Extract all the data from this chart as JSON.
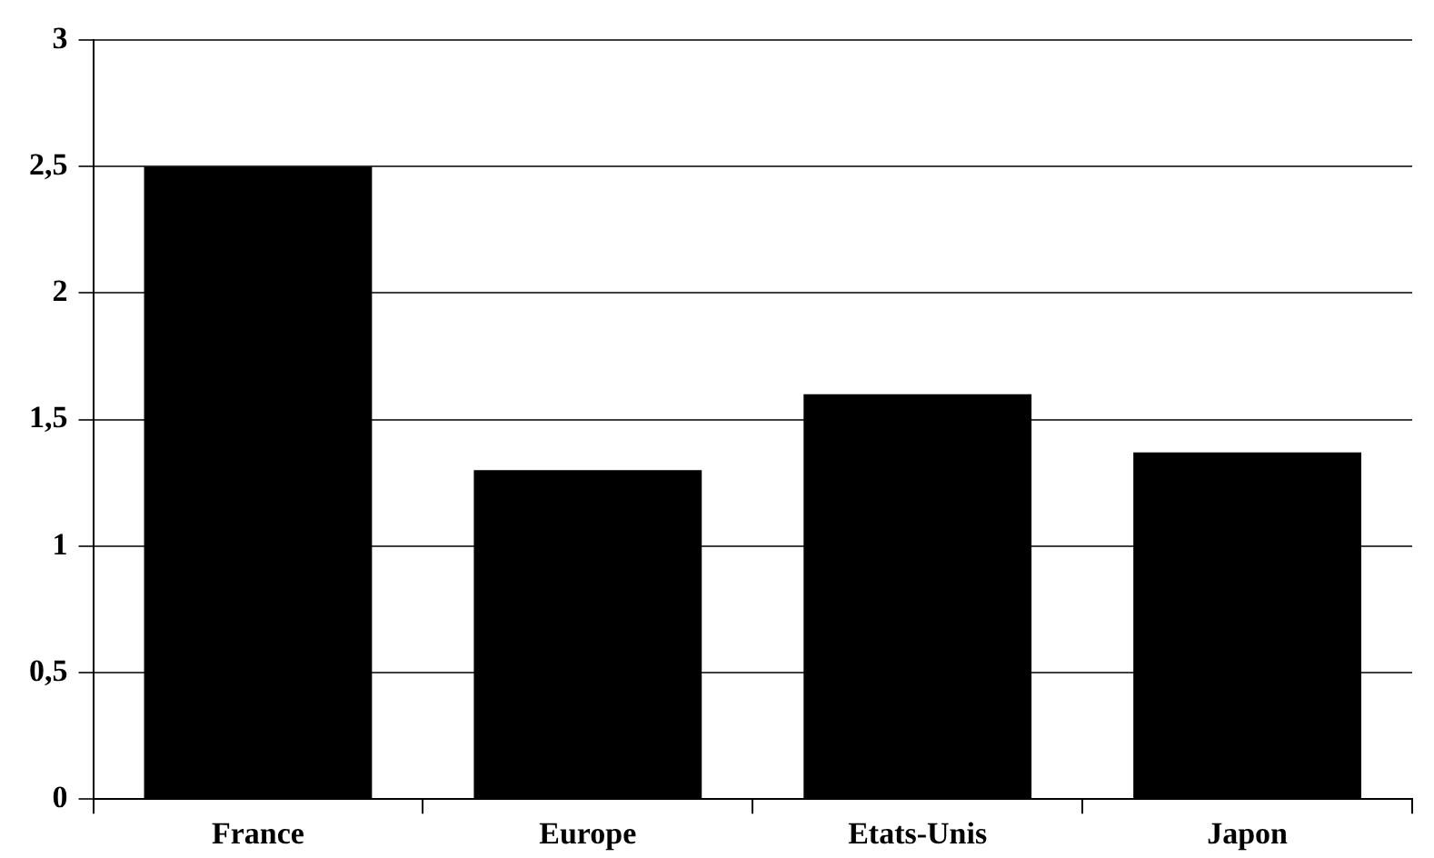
{
  "chart_data": {
    "type": "bar",
    "categories": [
      "France",
      "Europe",
      "Etats-Unis",
      "Japon"
    ],
    "values": [
      2.5,
      1.3,
      1.6,
      1.37
    ],
    "color": "#000000",
    "ylim": [
      0,
      3
    ],
    "yticks": [
      0,
      {
        "value": 0.5,
        "label": "0,5"
      },
      {
        "value": 1,
        "label": "1"
      },
      {
        "value": 1.5,
        "label": "1,5"
      },
      {
        "value": 2,
        "label": "2"
      },
      {
        "value": 2.5,
        "label": "2,5"
      },
      3
    ],
    "grid": "y",
    "legend": false
  }
}
